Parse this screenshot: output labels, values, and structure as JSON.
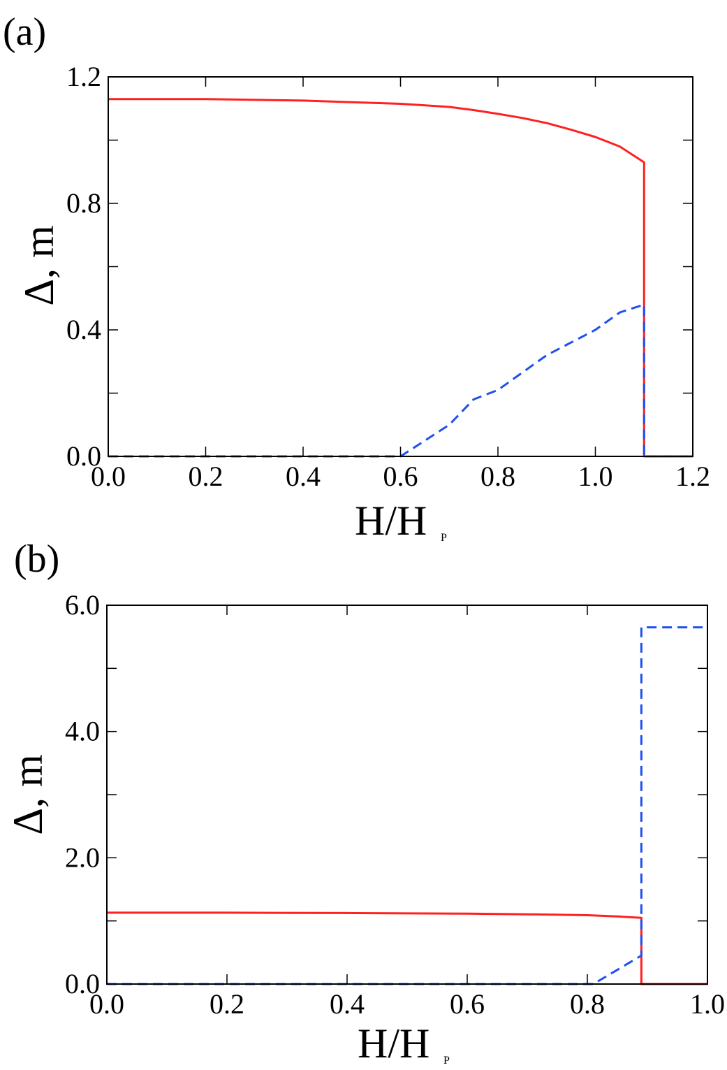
{
  "chart_data": [
    {
      "panel_label": "(a)",
      "type": "line",
      "xlabel_main": "H/H",
      "xlabel_sub": "P",
      "ylabel": "Δ, m",
      "xlim": [
        0.0,
        1.2
      ],
      "ylim": [
        0.0,
        1.2
      ],
      "xticks": [
        0.0,
        0.2,
        0.4,
        0.6,
        0.8,
        1.0,
        1.2
      ],
      "xtick_labels": [
        "0.0",
        "0.2",
        "0.4",
        "0.6",
        "0.8",
        "1.0",
        "1.2"
      ],
      "yticks": [
        0.0,
        0.2,
        0.4,
        0.6,
        0.8,
        1.0,
        1.2
      ],
      "ytick_labels": [
        "0.0",
        "",
        "0.4",
        "",
        "0.8",
        "",
        "1.2"
      ],
      "grid": false,
      "series": [
        {
          "style": "solid",
          "color": "#ff2020",
          "x": [
            0.0,
            0.2,
            0.4,
            0.5,
            0.6,
            0.7,
            0.75,
            0.8,
            0.85,
            0.9,
            0.95,
            1.0,
            1.05,
            1.1,
            1.1,
            1.2
          ],
          "y": [
            1.13,
            1.13,
            1.125,
            1.12,
            1.115,
            1.105,
            1.095,
            1.083,
            1.07,
            1.054,
            1.033,
            1.01,
            0.98,
            0.93,
            0.0,
            0.0
          ]
        },
        {
          "style": "dashed",
          "color": "#2050f0",
          "x": [
            0.0,
            0.6,
            0.7,
            0.75,
            0.8,
            0.9,
            1.0,
            1.05,
            1.1,
            1.1,
            1.2
          ],
          "y": [
            0.0,
            0.0,
            0.1,
            0.18,
            0.21,
            0.32,
            0.4,
            0.455,
            0.48,
            0.0,
            0.0
          ]
        }
      ]
    },
    {
      "panel_label": "(b)",
      "type": "line",
      "xlabel_main": "H/H",
      "xlabel_sub": "P",
      "ylabel": "Δ, m",
      "xlim": [
        0.0,
        1.0
      ],
      "ylim": [
        0.0,
        6.0
      ],
      "xticks": [
        0.0,
        0.2,
        0.4,
        0.6,
        0.8,
        1.0
      ],
      "xtick_labels": [
        "0.0",
        "0.2",
        "0.4",
        "0.6",
        "0.8",
        "1.0"
      ],
      "yticks": [
        0.0,
        1.0,
        2.0,
        3.0,
        4.0,
        5.0,
        6.0
      ],
      "ytick_labels": [
        "0.0",
        "",
        "2.0",
        "",
        "4.0",
        "",
        "6.0"
      ],
      "grid": false,
      "series": [
        {
          "style": "solid",
          "color": "#ff2020",
          "x": [
            0.0,
            0.2,
            0.4,
            0.6,
            0.7,
            0.8,
            0.85,
            0.89,
            0.89,
            1.0
          ],
          "y": [
            1.13,
            1.13,
            1.125,
            1.115,
            1.105,
            1.09,
            1.07,
            1.05,
            0.0,
            0.0
          ]
        },
        {
          "style": "dashed",
          "color": "#2050f0",
          "x": [
            0.0,
            0.81,
            0.89,
            0.89,
            0.9,
            1.0
          ],
          "y": [
            0.0,
            0.0,
            0.45,
            5.65,
            5.65,
            5.65
          ]
        }
      ]
    }
  ]
}
